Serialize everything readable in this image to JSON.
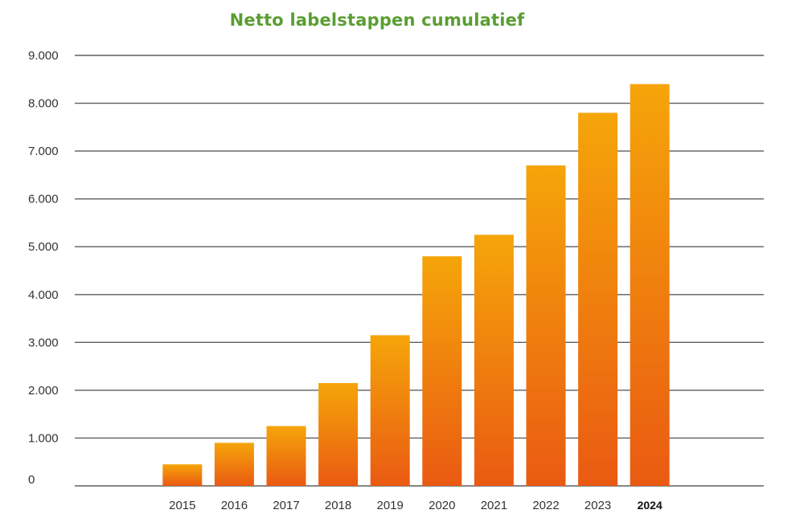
{
  "chart_data": {
    "type": "bar",
    "title": "Netto labelstappen cumulatief",
    "xlabel": "",
    "ylabel": "",
    "categories": [
      "",
      "",
      "",
      "2015",
      "2016",
      "2017",
      "2018",
      "2019",
      "2020",
      "2021",
      "2022",
      "2023",
      "2024"
    ],
    "values": [
      null,
      null,
      null,
      450,
      900,
      1250,
      2150,
      3150,
      4800,
      5250,
      6700,
      7800,
      8400
    ],
    "ylim": [
      0,
      9000
    ],
    "yticks": [
      {
        "value": 0,
        "label": "0"
      },
      {
        "value": 1000,
        "label": "1.000"
      },
      {
        "value": 2000,
        "label": "2.000"
      },
      {
        "value": 3000,
        "label": "3.000"
      },
      {
        "value": 4000,
        "label": "4.000"
      },
      {
        "value": 5000,
        "label": "5.000"
      },
      {
        "value": 6000,
        "label": "6.000"
      },
      {
        "value": 7000,
        "label": "7.000"
      },
      {
        "value": 8000,
        "label": "8.000"
      },
      {
        "value": 9000,
        "label": "9.000"
      }
    ],
    "highlighted_category": "2024",
    "grid": true,
    "legend": "none",
    "colors": {
      "title": "#5a9e32",
      "bar_top": "#f5a50a",
      "bar_bottom": "#ea5a12",
      "grid": "#5e5e5e"
    }
  }
}
